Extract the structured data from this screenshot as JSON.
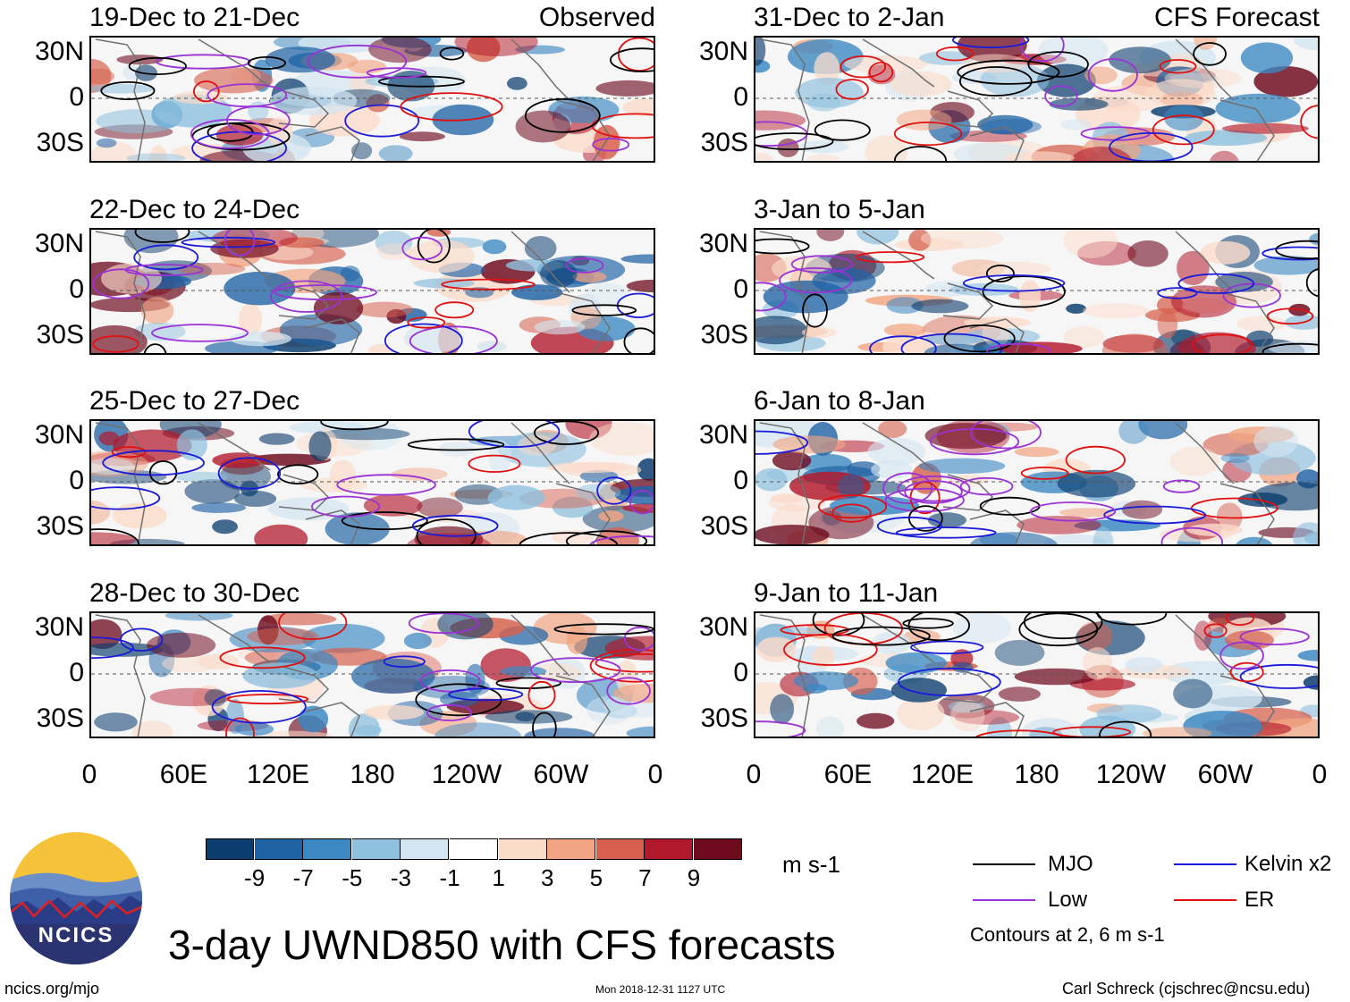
{
  "panels_left": [
    {
      "title": "19-Dec to 21-Dec",
      "tag": "Observed"
    },
    {
      "title": "22-Dec to 24-Dec",
      "tag": ""
    },
    {
      "title": "25-Dec to 27-Dec",
      "tag": ""
    },
    {
      "title": "28-Dec to 30-Dec",
      "tag": ""
    }
  ],
  "panels_right": [
    {
      "title": "31-Dec to 2-Jan",
      "tag": "CFS Forecast"
    },
    {
      "title": "3-Jan to 5-Jan",
      "tag": ""
    },
    {
      "title": "6-Jan to 8-Jan",
      "tag": ""
    },
    {
      "title": "9-Jan to 11-Jan",
      "tag": ""
    }
  ],
  "lat_labels": [
    "30N",
    "0",
    "30S"
  ],
  "lon_labels": [
    "0",
    "60E",
    "120E",
    "180",
    "120W",
    "60W",
    "0"
  ],
  "colorbar": {
    "ticks": [
      "-9",
      "-7",
      "-5",
      "-3",
      "-1",
      "1",
      "3",
      "5",
      "7",
      "9"
    ],
    "units": "m s-1",
    "colors": [
      "#0b3d6e",
      "#1f63a5",
      "#3b88c2",
      "#8fc0de",
      "#d4e6f1",
      "#ffffff",
      "#fbdccb",
      "#f1a582",
      "#d6604d",
      "#b2182b",
      "#6e0a1e"
    ]
  },
  "legend": {
    "items": [
      {
        "label": "MJO",
        "color": "#000000"
      },
      {
        "label": "Kelvin x2",
        "color": "#1a1ad9"
      },
      {
        "label": "Low",
        "color": "#9a32d6"
      },
      {
        "label": "ER",
        "color": "#e01010"
      }
    ],
    "note": "Contours at 2, 6 m s-1"
  },
  "logo": {
    "text": "NCICS"
  },
  "main_title": "3-day UWND850 with CFS forecasts",
  "footer": {
    "left": "ncics.org/mjo",
    "center": "Mon 2018-12-31 1127 UTC",
    "right": "Carl Schreck (cjschrec@ncsu.edu)"
  }
}
